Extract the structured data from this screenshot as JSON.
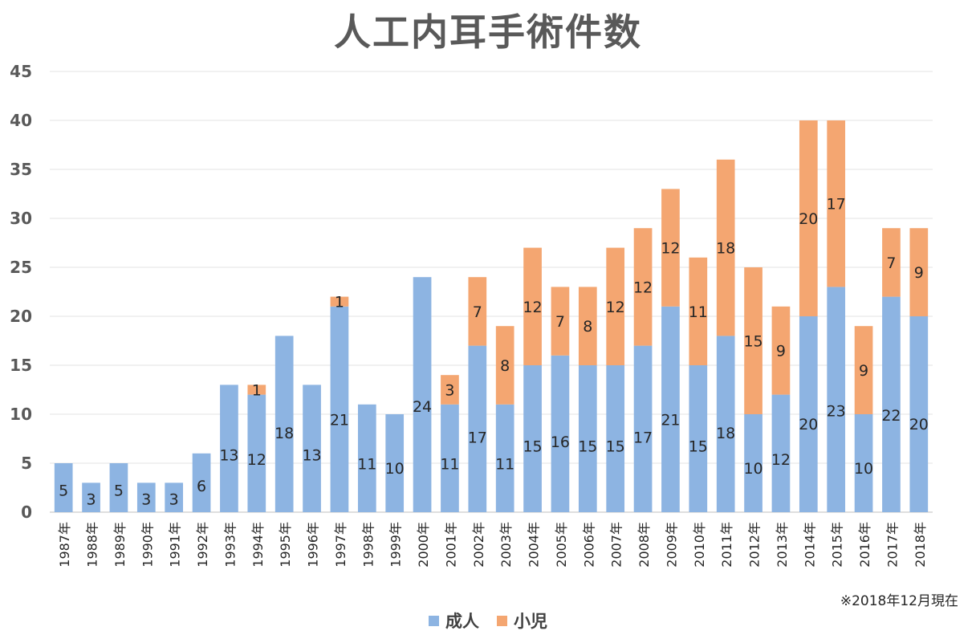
{
  "chart_data": {
    "type": "bar",
    "stacked": true,
    "title": "人工内耳手術件数",
    "note": "※2018年12月現在",
    "categories": [
      "1987年",
      "1988年",
      "1989年",
      "1990年",
      "1991年",
      "1992年",
      "1993年",
      "1994年",
      "1995年",
      "1996年",
      "1997年",
      "1998年",
      "1999年",
      "2000年",
      "2001年",
      "2002年",
      "2003年",
      "2004年",
      "2005年",
      "2006年",
      "2007年",
      "2008年",
      "2009年",
      "2010年",
      "2011年",
      "2012年",
      "2013年",
      "2014年",
      "2015年",
      "2016年",
      "2017年",
      "2018年"
    ],
    "series": [
      {
        "name": "成人",
        "color": "#8DB4E2",
        "values": [
          5,
          3,
          5,
          3,
          3,
          6,
          13,
          12,
          18,
          13,
          21,
          11,
          10,
          24,
          11,
          17,
          11,
          15,
          16,
          15,
          15,
          17,
          21,
          15,
          18,
          10,
          12,
          20,
          23,
          10,
          22,
          20
        ]
      },
      {
        "name": "小児",
        "color": "#F4A671",
        "values": [
          0,
          0,
          0,
          0,
          0,
          0,
          0,
          1,
          0,
          0,
          1,
          0,
          0,
          0,
          3,
          7,
          8,
          12,
          7,
          8,
          12,
          12,
          12,
          11,
          18,
          15,
          9,
          20,
          17,
          9,
          7,
          9
        ]
      }
    ],
    "ylim": [
      0,
      45
    ],
    "yticks": [
      0,
      5,
      10,
      15,
      20,
      25,
      30,
      35,
      40,
      45
    ],
    "grid": true,
    "legend_position": "bottom"
  }
}
